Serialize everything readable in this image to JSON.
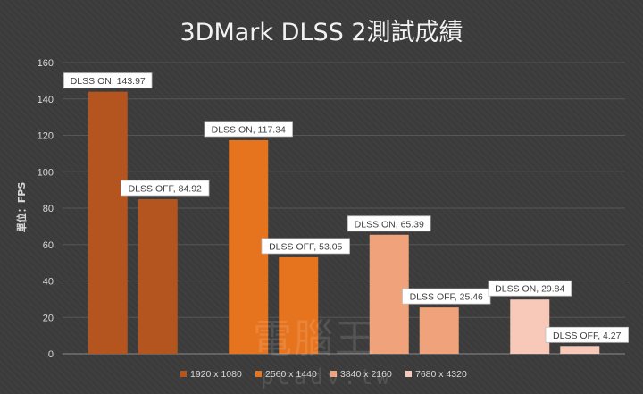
{
  "chart_data": {
    "type": "bar",
    "title": "3DMark DLSS 2測試成績",
    "ylabel": "單位：FPS",
    "xlabel": "",
    "ylim": [
      0,
      160
    ],
    "yticks": [
      0,
      20,
      40,
      60,
      80,
      100,
      120,
      140,
      160
    ],
    "grid": true,
    "legend_position": "bottom",
    "categories": [
      "DLSS ON",
      "DLSS OFF"
    ],
    "series": [
      {
        "name": "1920 x 1080",
        "color": "#b4541f",
        "values": [
          143.97,
          84.92
        ],
        "labels": [
          "DLSS ON, 143.97",
          "DLSS OFF, 84.92"
        ]
      },
      {
        "name": "2560 x 1440",
        "color": "#e6731e",
        "values": [
          117.34,
          53.05
        ],
        "labels": [
          "DLSS ON, 117.34",
          "DLSS OFF, 53.05"
        ]
      },
      {
        "name": "3840 x 2160",
        "color": "#f0a27a",
        "values": [
          65.39,
          25.46
        ],
        "labels": [
          "DLSS ON, 65.39",
          "DLSS OFF, 25.46"
        ]
      },
      {
        "name": "7680 x 4320",
        "color": "#f8c8b8",
        "values": [
          29.84,
          4.27
        ],
        "labels": [
          "DLSS ON, 29.84",
          "DLSS OFF, 4.27"
        ]
      }
    ]
  },
  "watermark": {
    "logo": "電腦王",
    "url": "pcadv.tw"
  }
}
